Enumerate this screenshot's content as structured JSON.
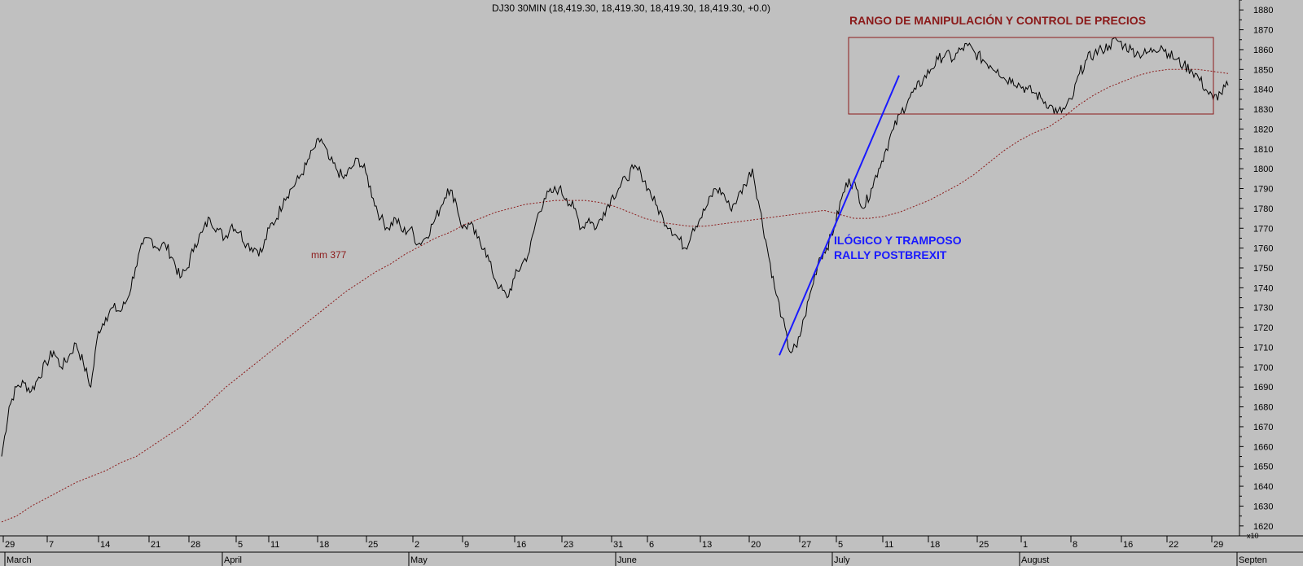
{
  "colors": {
    "background": "#c0c0c0",
    "price": "#000000",
    "moving_average": "#8b1a1a",
    "range_box": "#8b1a1a",
    "trend_line": "#1a1aff",
    "annotation_red": "#8b1a1a",
    "annotation_blue": "#1a1aff"
  },
  "chart_data": {
    "type": "line",
    "title": "DJ30 30MIN (18,419.30, 18,419.30, 18,419.30, 18,419.30, +0.0)",
    "axis_multiplier": "x10",
    "ylim": [
      1615,
      1885
    ],
    "y_ticks": [
      1620,
      1630,
      1640,
      1650,
      1660,
      1670,
      1680,
      1690,
      1700,
      1710,
      1720,
      1730,
      1740,
      1750,
      1760,
      1770,
      1780,
      1790,
      1800,
      1810,
      1820,
      1830,
      1840,
      1850,
      1860,
      1870,
      1880
    ],
    "x_day_ticks": [
      "29",
      "7",
      "14",
      "21",
      "28",
      "5",
      "11",
      "18",
      "25",
      "2",
      "9",
      "16",
      "23",
      "31",
      "6",
      "13",
      "20",
      "27",
      "5",
      "11",
      "18",
      "25",
      "1",
      "8",
      "16",
      "22",
      "29"
    ],
    "x_month_labels": [
      "March",
      "April",
      "May",
      "June",
      "July",
      "August",
      "Septen"
    ],
    "series": [
      {
        "kind": "price",
        "values": [
          1655,
          1680,
          1690,
          1692,
          1688,
          1695,
          1702,
          1708,
          1700,
          1705,
          1712,
          1702,
          1690,
          1718,
          1725,
          1730,
          1728,
          1735,
          1750,
          1762,
          1765,
          1760,
          1762,
          1755,
          1745,
          1750,
          1762,
          1768,
          1775,
          1770,
          1765,
          1772,
          1768,
          1762,
          1760,
          1758,
          1770,
          1775,
          1785,
          1790,
          1795,
          1802,
          1810,
          1815,
          1805,
          1800,
          1795,
          1800,
          1805,
          1798,
          1785,
          1775,
          1770,
          1775,
          1768,
          1770,
          1762,
          1765,
          1772,
          1780,
          1790,
          1785,
          1770,
          1772,
          1765,
          1760,
          1748,
          1740,
          1735,
          1745,
          1752,
          1758,
          1775,
          1785,
          1788,
          1790,
          1785,
          1780,
          1770,
          1775,
          1770,
          1778,
          1785,
          1790,
          1795,
          1800,
          1798,
          1790,
          1782,
          1775,
          1770,
          1765,
          1760,
          1770,
          1775,
          1782,
          1790,
          1788,
          1780,
          1785,
          1792,
          1800,
          1780,
          1760,
          1740,
          1725,
          1708,
          1710,
          1725,
          1740,
          1755,
          1760,
          1770,
          1785,
          1795,
          1790,
          1780,
          1790,
          1800,
          1810,
          1820,
          1828,
          1835,
          1840,
          1845,
          1850,
          1855,
          1858,
          1855,
          1860,
          1862,
          1858,
          1855,
          1852,
          1850,
          1845,
          1845,
          1842,
          1840,
          1838,
          1835,
          1832,
          1828,
          1830,
          1835,
          1848,
          1855,
          1858,
          1860,
          1862,
          1865,
          1862,
          1860,
          1858,
          1858,
          1860,
          1862,
          1858,
          1855,
          1852,
          1850,
          1846,
          1840,
          1835,
          1838,
          1842
        ]
      },
      {
        "kind": "moving_average",
        "label": "mm 377",
        "values": [
          1622,
          1625,
          1630,
          1634,
          1638,
          1642,
          1645,
          1648,
          1652,
          1655,
          1660,
          1665,
          1670,
          1676,
          1683,
          1690,
          1696,
          1702,
          1708,
          1714,
          1720,
          1726,
          1732,
          1738,
          1743,
          1748,
          1752,
          1757,
          1761,
          1765,
          1768,
          1772,
          1775,
          1778,
          1780,
          1782,
          1783,
          1784,
          1784,
          1784,
          1783,
          1781,
          1778,
          1775,
          1773,
          1772,
          1771,
          1771,
          1772,
          1773,
          1774,
          1775,
          1776,
          1777,
          1778,
          1779,
          1777,
          1775,
          1775,
          1776,
          1778,
          1781,
          1784,
          1788,
          1792,
          1797,
          1803,
          1809,
          1814,
          1818,
          1821,
          1826,
          1832,
          1837,
          1841,
          1844,
          1847,
          1849,
          1850,
          1850,
          1850,
          1849,
          1848
        ]
      }
    ]
  },
  "annotations": {
    "range_title": "RANGO DE MANIPULACIÓN Y CONTROL DE PRECIOS",
    "rally_line1": "ILÓGICO Y TRAMPOSO",
    "rally_line2": "RALLY POSTBREXIT",
    "trend_start": 1706,
    "trend_end": 1847
  }
}
